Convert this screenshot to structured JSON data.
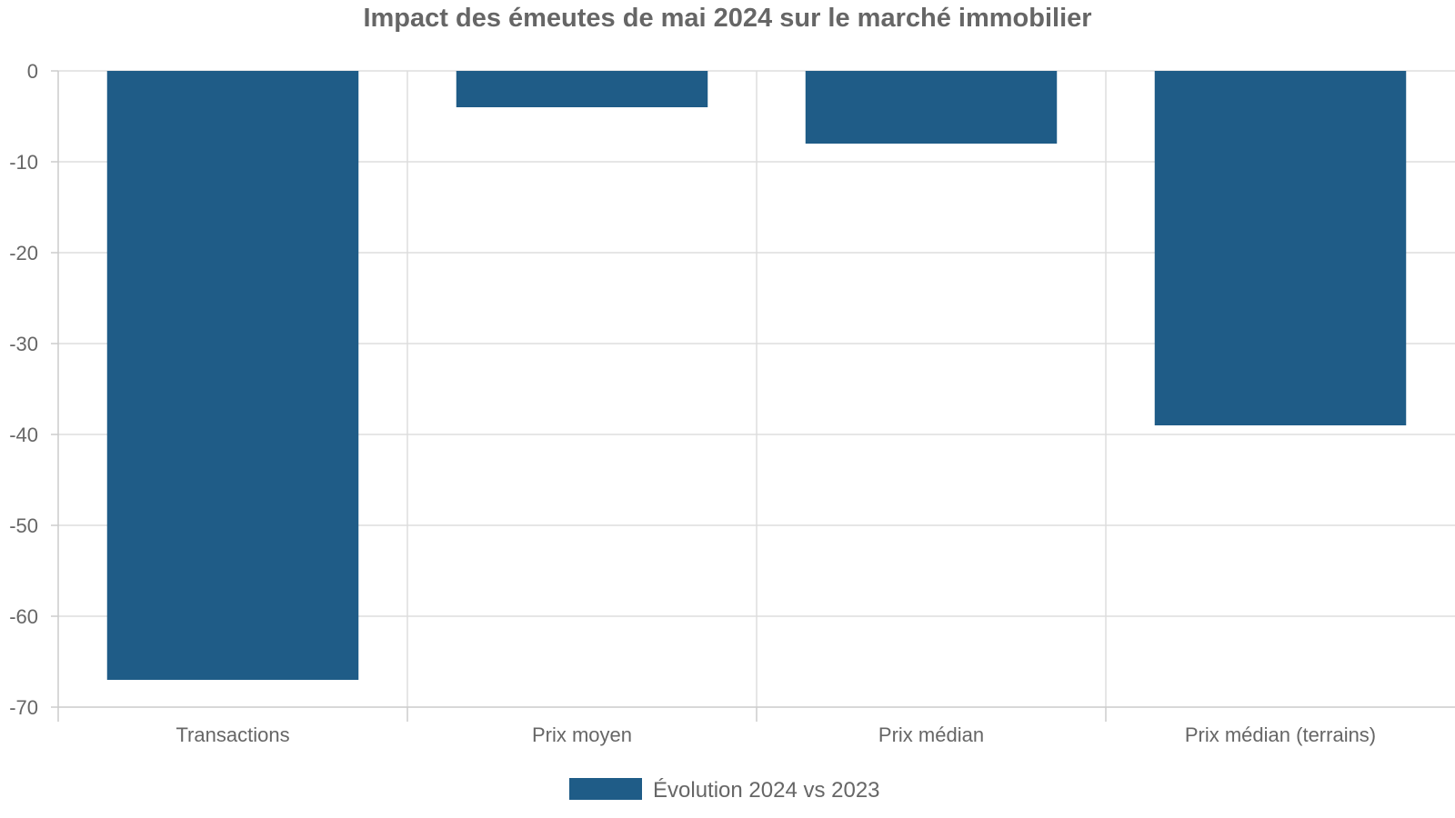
{
  "chart_data": {
    "type": "bar",
    "title": "Impact des émeutes de mai 2024 sur le marché immobilier",
    "xlabel": "",
    "ylabel": "",
    "categories": [
      "Transactions",
      "Prix moyen",
      "Prix médian",
      "Prix médian (terrains)"
    ],
    "series": [
      {
        "name": "Évolution 2024 vs 2023",
        "values": [
          -67,
          -4,
          -8,
          -39
        ],
        "color": "#1f5c87"
      }
    ],
    "ylim": [
      -70,
      0
    ],
    "yticks": [
      0,
      -10,
      -20,
      -30,
      -40,
      -50,
      -60,
      -70
    ],
    "grid": true,
    "legend_position": "bottom-center"
  }
}
